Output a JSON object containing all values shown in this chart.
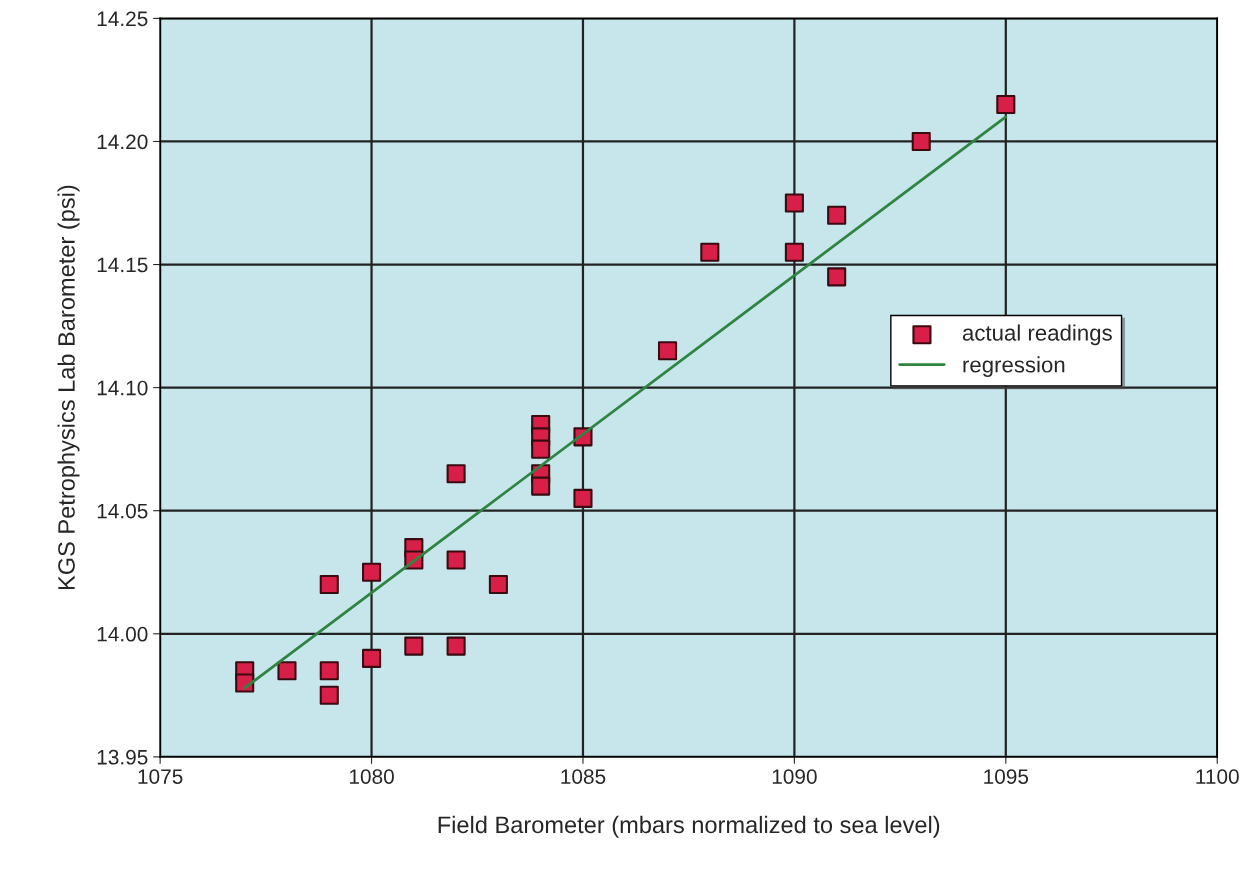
{
  "chart_data": {
    "type": "scatter",
    "xlabel": "Field Barometer (mbars normalized to sea level)",
    "ylabel": "KGS Petrophysics Lab Barometer (psi)",
    "xlim": [
      1075,
      1100
    ],
    "xticks": [
      1075,
      1080,
      1085,
      1090,
      1095,
      1100
    ],
    "ylim": [
      13.95,
      14.25
    ],
    "yticks": [
      {
        "value": 13.95,
        "label": "13.95"
      },
      {
        "value": 14.0,
        "label": "14.00"
      },
      {
        "value": 14.05,
        "label": "14.05"
      },
      {
        "value": 14.1,
        "label": "14.10"
      },
      {
        "value": 14.15,
        "label": "14.15"
      },
      {
        "value": 14.2,
        "label": "14.20"
      },
      {
        "value": 14.25,
        "label": "14.25"
      }
    ],
    "grid": true,
    "legend": "right",
    "series": [
      {
        "name": "actual readings",
        "marker": "square",
        "color": "#d81f48",
        "x": [
          1077,
          1077,
          1078,
          1079,
          1079,
          1079,
          1080,
          1080,
          1081,
          1081,
          1081,
          1082,
          1082,
          1082,
          1083,
          1084,
          1084,
          1084,
          1084,
          1084,
          1085,
          1085,
          1087,
          1088,
          1090,
          1090,
          1091,
          1091,
          1093,
          1095
        ],
        "values": [
          13.985,
          13.98,
          13.985,
          14.02,
          13.985,
          13.975,
          14.025,
          13.99,
          14.035,
          14.03,
          13.995,
          14.065,
          14.03,
          13.995,
          14.02,
          14.085,
          14.08,
          14.075,
          14.065,
          14.06,
          14.08,
          14.055,
          14.115,
          14.155,
          14.175,
          14.155,
          14.17,
          14.145,
          14.2,
          14.215
        ]
      },
      {
        "name": "regression",
        "type": "line",
        "color": "#2e8540",
        "x": [
          1077,
          1095
        ],
        "values": [
          13.978,
          14.21
        ]
      }
    ]
  }
}
